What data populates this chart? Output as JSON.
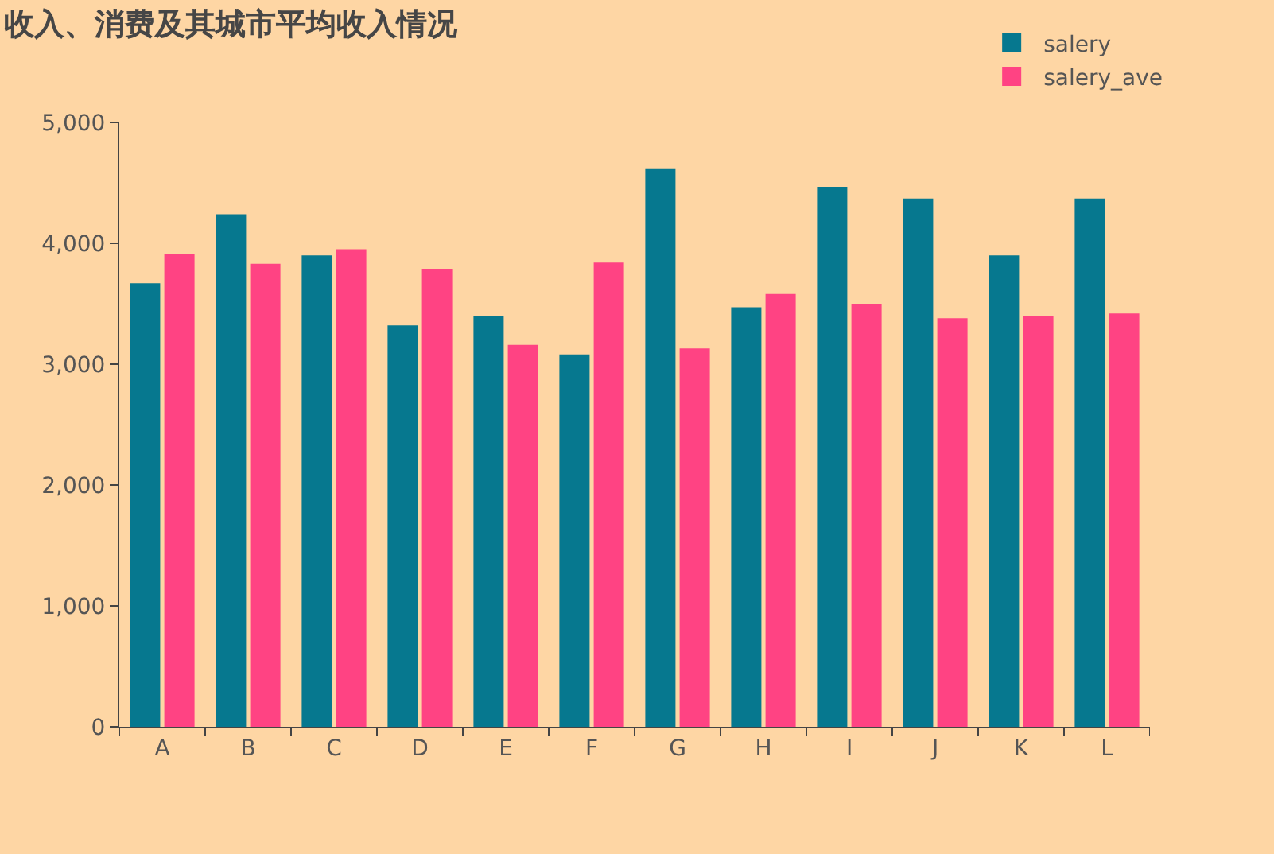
{
  "chart_data": {
    "type": "bar",
    "title": "收入、消费及其城市平均收入情况",
    "categories": [
      "A",
      "B",
      "C",
      "D",
      "E",
      "F",
      "G",
      "H",
      "I",
      "J",
      "K",
      "L"
    ],
    "series": [
      {
        "name": "salery",
        "color": "#06788f",
        "values": [
          3670,
          4240,
          3900,
          3320,
          3400,
          3080,
          4620,
          3470,
          4467,
          4370,
          3900,
          4370
        ]
      },
      {
        "name": "salery_ave",
        "color": "#ff4383",
        "values": [
          3910,
          3830,
          3950,
          3790,
          3160,
          3840,
          3130,
          3580,
          3500,
          3380,
          3400,
          3420
        ]
      }
    ],
    "ylim": [
      0,
      5000
    ],
    "yticks": [
      {
        "value": 0,
        "label": "0"
      },
      {
        "value": 1000,
        "label": "1,000"
      },
      {
        "value": 2000,
        "label": "2,000"
      },
      {
        "value": 3000,
        "label": "3,000"
      },
      {
        "value": 4000,
        "label": "4,000"
      },
      {
        "value": 5000,
        "label": "5,000"
      }
    ],
    "legend": "top right"
  }
}
